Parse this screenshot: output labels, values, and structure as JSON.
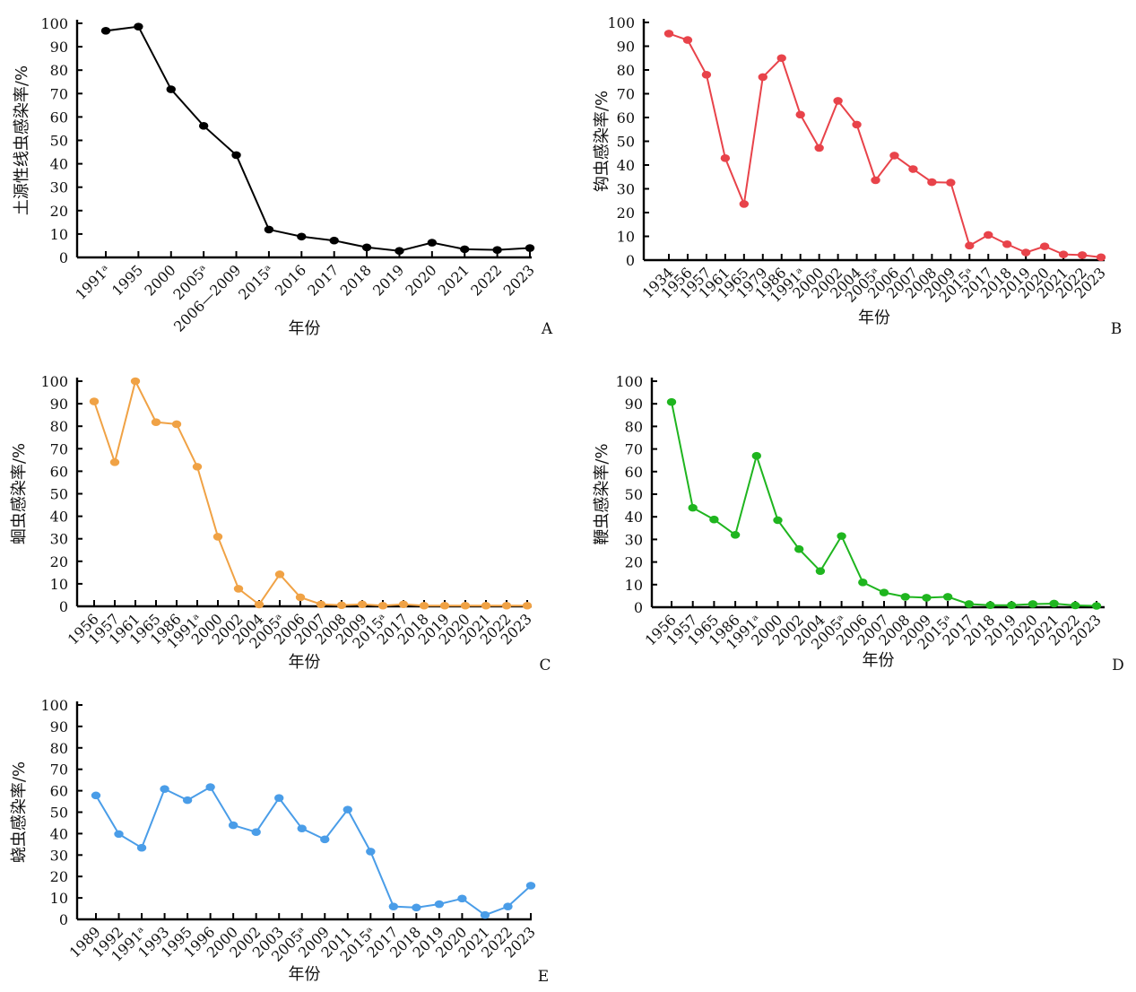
{
  "chart_data": [
    {
      "type": "line",
      "panel": "A",
      "xlabel": "年份",
      "ylabel": "土源性线虫感染率/%",
      "ylim": [
        0,
        100
      ],
      "yticks": [
        0,
        10,
        20,
        30,
        40,
        50,
        60,
        70,
        80,
        90,
        100
      ],
      "categories": [
        "1991ᵃ",
        "1995",
        "2000",
        "2005ᵃ",
        "2006—2009",
        "2015ᵃ",
        "2016",
        "2017",
        "2018",
        "2019",
        "2020",
        "2021",
        "2022",
        "2023"
      ],
      "color": "#000000",
      "values": [
        96.8,
        98.6,
        71.8,
        56.2,
        43.7,
        11.9,
        8.9,
        7.2,
        4.3,
        2.8,
        6.3,
        3.5,
        3.2,
        4.0
      ]
    },
    {
      "type": "line",
      "panel": "B",
      "xlabel": "年份",
      "ylabel": "钩虫感染率/%",
      "ylim": [
        0,
        100
      ],
      "yticks": [
        0,
        10,
        20,
        30,
        40,
        50,
        60,
        70,
        80,
        90,
        100
      ],
      "categories": [
        "1934",
        "1956",
        "1957",
        "1961",
        "1965",
        "1979",
        "1986",
        "1991ᵃ",
        "2000",
        "2002",
        "2004",
        "2005ᵃ",
        "2006",
        "2007",
        "2008",
        "2009",
        "2015ᵃ",
        "2017",
        "2018",
        "2019",
        "2020",
        "2021",
        "2022",
        "2023"
      ],
      "color": "#e8434a",
      "values": [
        95.3,
        92.6,
        78.0,
        42.9,
        23.6,
        77.0,
        85.0,
        61.2,
        47.2,
        67.0,
        57.0,
        33.6,
        44.0,
        38.3,
        32.8,
        32.6,
        6.1,
        10.6,
        6.7,
        3.2,
        5.8,
        2.4,
        2.1,
        1.2
      ]
    },
    {
      "type": "line",
      "panel": "C",
      "xlabel": "年份",
      "ylabel": "蛔虫感染率/%",
      "ylim": [
        0,
        100
      ],
      "yticks": [
        0,
        10,
        20,
        30,
        40,
        50,
        60,
        70,
        80,
        90,
        100
      ],
      "categories": [
        "1956",
        "1957",
        "1961",
        "1965",
        "1986",
        "1991ᵃ",
        "2000",
        "2002",
        "2004",
        "2005ᵃ",
        "2006",
        "2007",
        "2008",
        "2009",
        "2015ᵃ",
        "2017",
        "2018",
        "2019",
        "2020",
        "2021",
        "2022",
        "2023"
      ],
      "color": "#f0a245",
      "values": [
        91.0,
        64.0,
        100.0,
        81.8,
        80.9,
        62.0,
        30.9,
        7.8,
        0.8,
        14.2,
        4.0,
        0.9,
        0.5,
        0.9,
        0.3,
        0.9,
        0.3,
        0.3,
        0.3,
        0.3,
        0.3,
        0.3
      ]
    },
    {
      "type": "line",
      "panel": "D",
      "xlabel": "年份",
      "ylabel": "鞭虫感染率/%",
      "ylim": [
        0,
        100
      ],
      "yticks": [
        0,
        10,
        20,
        30,
        40,
        50,
        60,
        70,
        80,
        90,
        100
      ],
      "categories": [
        "1956",
        "1957",
        "1965",
        "1986",
        "1991ᵃ",
        "2000",
        "2002",
        "2004",
        "2005ᵃ",
        "2006",
        "2007",
        "2008",
        "2009",
        "2015ᵃ",
        "2017",
        "2018",
        "2019",
        "2020",
        "2021",
        "2022",
        "2023"
      ],
      "color": "#1fb51f",
      "values": [
        90.8,
        44.0,
        38.8,
        32.0,
        67.0,
        38.5,
        25.7,
        16.0,
        31.5,
        11.0,
        6.5,
        4.6,
        4.2,
        4.6,
        1.4,
        0.9,
        0.9,
        1.4,
        1.6,
        0.8,
        0.6
      ]
    },
    {
      "type": "line",
      "panel": "E",
      "xlabel": "年份",
      "ylabel": "蛲虫感染率/%",
      "ylim": [
        0,
        100
      ],
      "yticks": [
        0,
        10,
        20,
        30,
        40,
        50,
        60,
        70,
        80,
        90,
        100
      ],
      "categories": [
        "1989",
        "1992",
        "1991ᵃ",
        "1993",
        "1995",
        "1996",
        "2000",
        "2002",
        "2003",
        "2005ᵃ",
        "2009",
        "2011",
        "2015ᵃ",
        "2017",
        "2018",
        "2019",
        "2020",
        "2021",
        "2022",
        "2023"
      ],
      "color": "#4a9de8",
      "values": [
        57.8,
        39.8,
        33.4,
        60.8,
        55.6,
        61.7,
        43.9,
        40.7,
        56.6,
        42.4,
        37.3,
        51.2,
        31.6,
        6.0,
        5.5,
        7.1,
        9.7,
        2.0,
        6.0,
        15.7
      ]
    }
  ]
}
